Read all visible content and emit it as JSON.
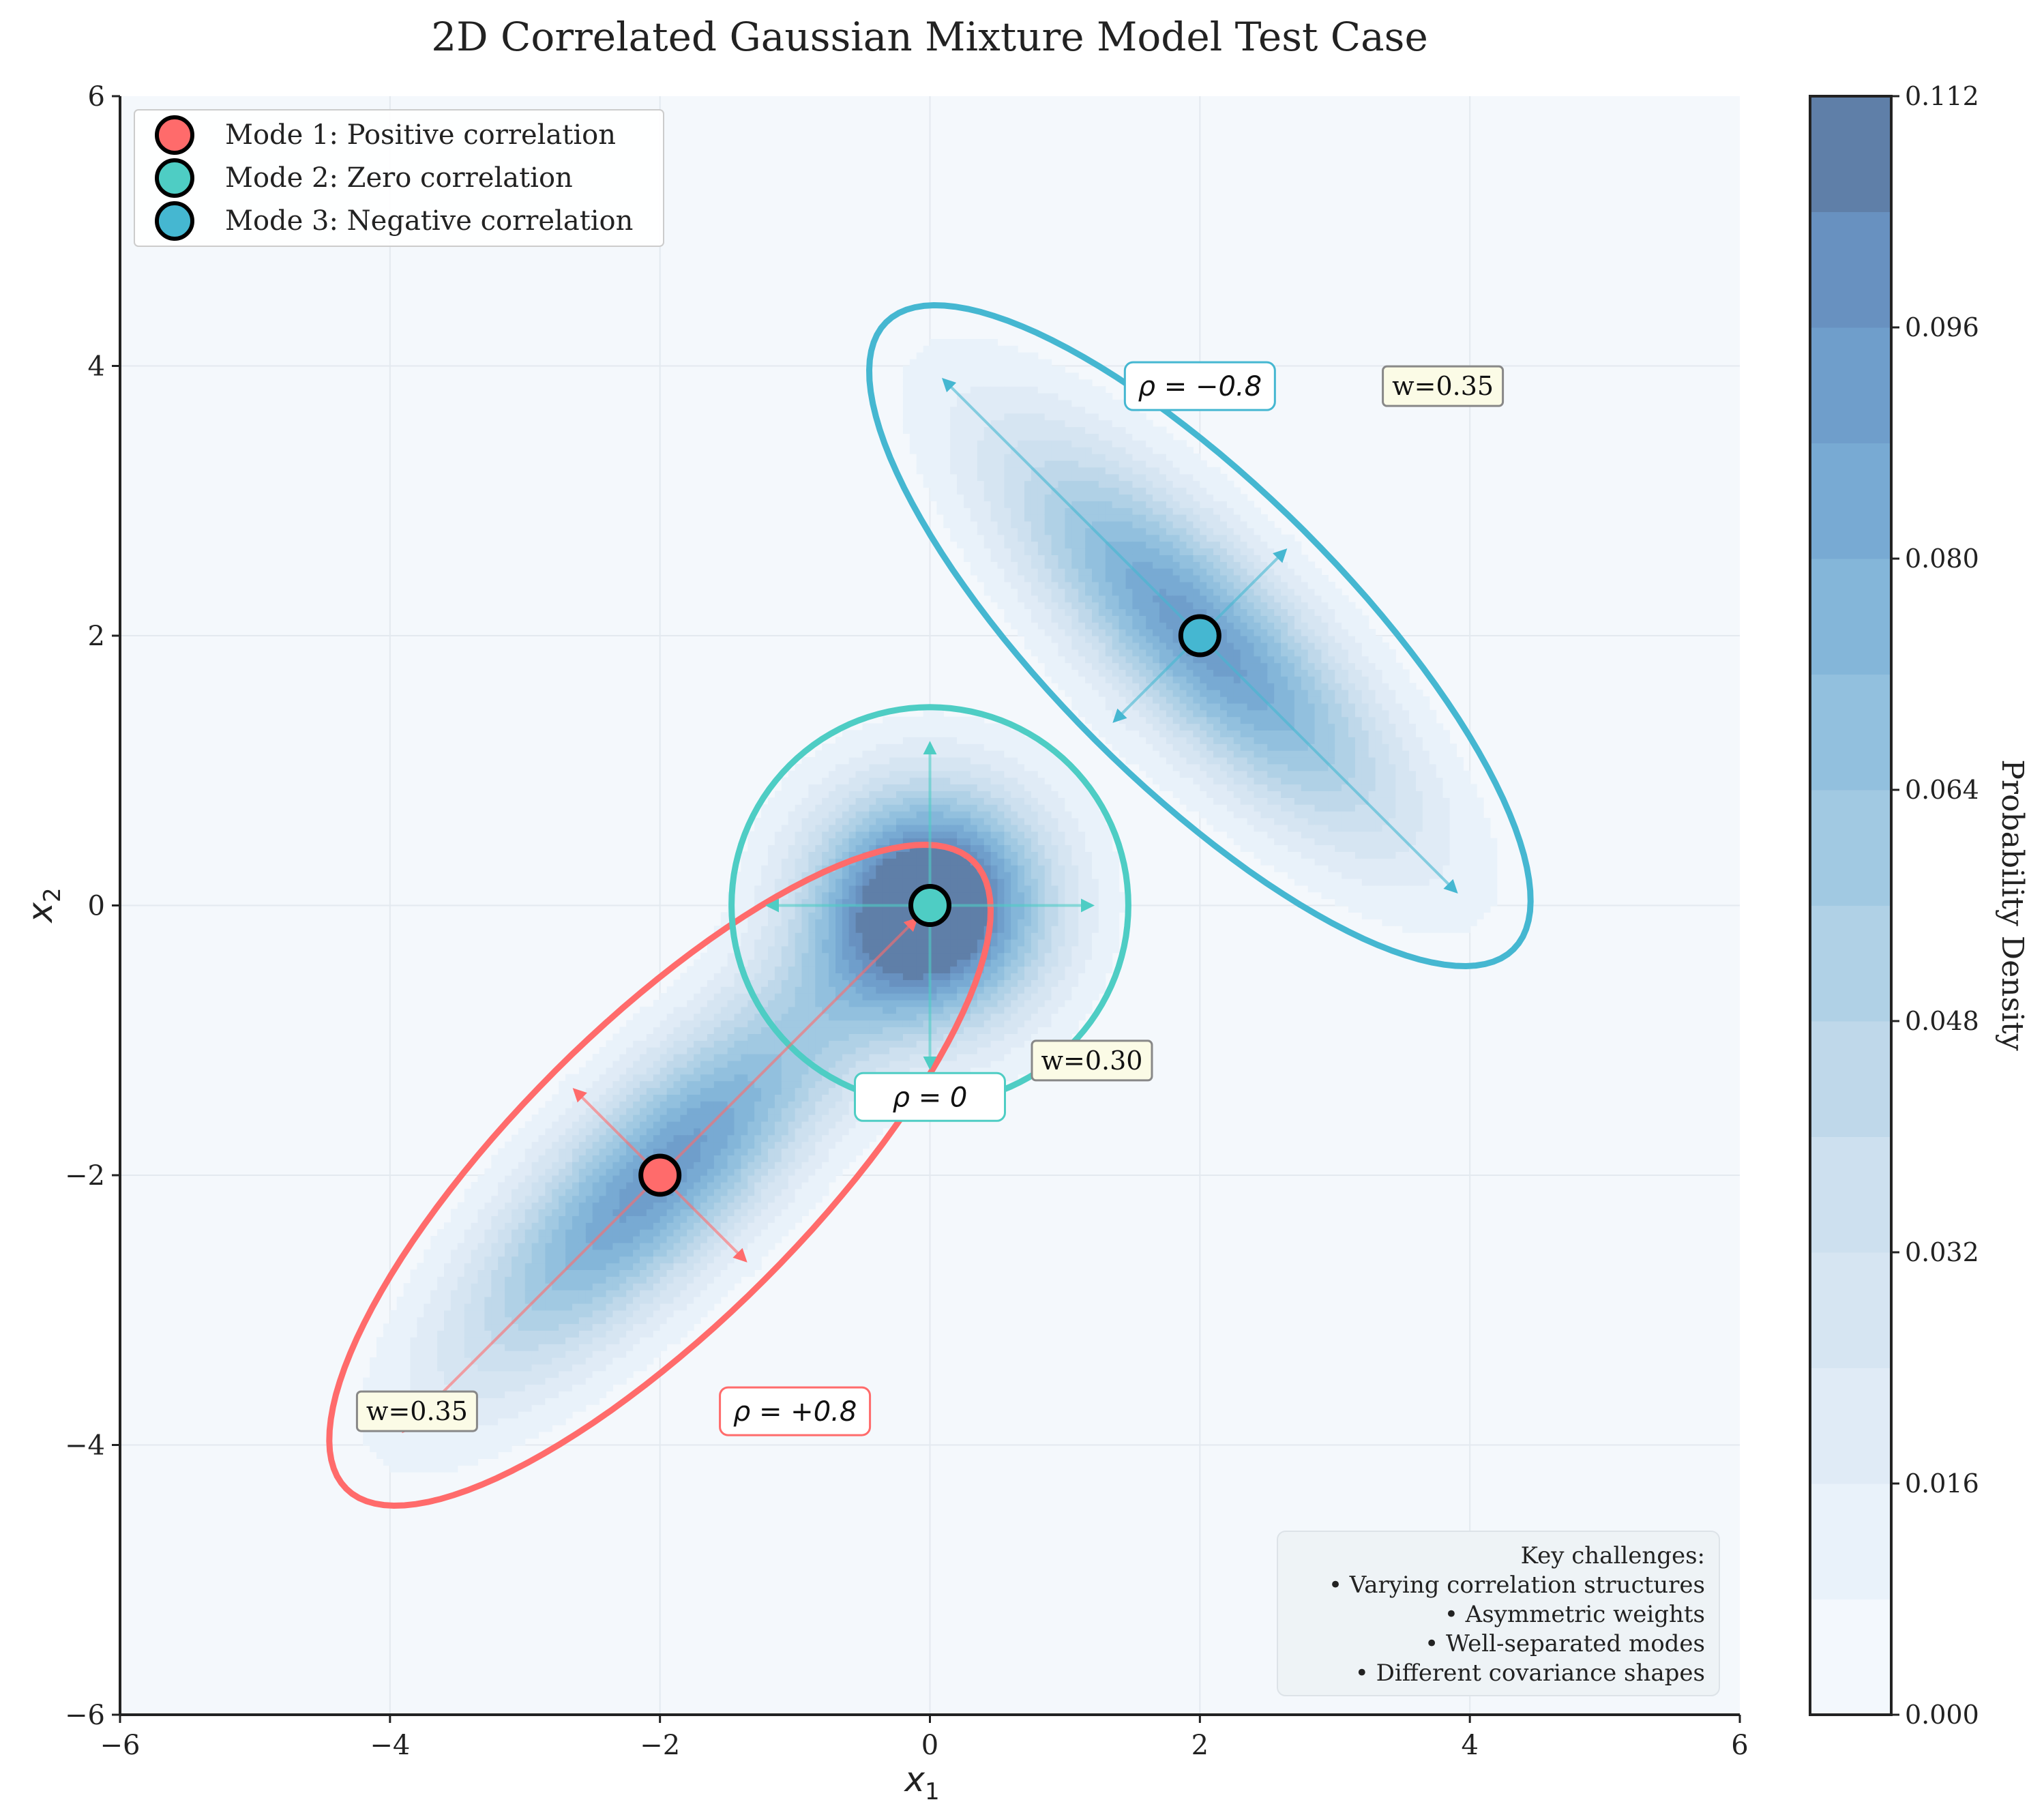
{
  "chart_data": {
    "type": "contour",
    "title": "2D Correlated Gaussian Mixture Model Test Case",
    "xlabel": "x",
    "xlabel_sub": "1",
    "ylabel": "x",
    "ylabel_sub": "2",
    "xlim": [
      -6,
      6
    ],
    "ylim": [
      -6,
      6
    ],
    "xticks": [
      -6,
      -4,
      -2,
      0,
      2,
      4,
      6
    ],
    "yticks": [
      -6,
      -4,
      -2,
      0,
      2,
      4,
      6
    ],
    "xtick_labels": [
      "−6",
      "−4",
      "−2",
      "0",
      "2",
      "4",
      "6"
    ],
    "ytick_labels": [
      "−6",
      "−4",
      "−2",
      "0",
      "2",
      "4",
      "6"
    ],
    "grid": true,
    "colorbar": {
      "label": "Probability Density",
      "min": 0.0,
      "max": 0.112,
      "ticks": [
        0.0,
        0.016,
        0.032,
        0.048,
        0.064,
        0.08,
        0.096,
        0.112
      ],
      "tick_labels": [
        "0.000",
        "0.016",
        "0.032",
        "0.048",
        "0.064",
        "0.080",
        "0.096",
        "0.112"
      ]
    },
    "modes": [
      {
        "name": "Mode 1: Positive correlation",
        "mean": [
          -2,
          -2
        ],
        "sigma": [
          1.0,
          1.0
        ],
        "rho": 0.8,
        "weight": 0.35,
        "color": "#ff6b6b",
        "rho_label": "ρ = +0.8",
        "weight_label": "w=0.35",
        "rho_label_pos": [
          -1.0,
          -3.75
        ],
        "weight_label_pos": [
          -3.8,
          -3.75
        ]
      },
      {
        "name": "Mode 2: Zero correlation",
        "mean": [
          0,
          0
        ],
        "sigma": [
          0.6,
          0.6
        ],
        "rho": 0.0,
        "weight": 0.3,
        "color": "#4ecdc4",
        "rho_label": "ρ = 0",
        "weight_label": "w=0.30",
        "rho_label_pos": [
          0.0,
          -1.42
        ],
        "weight_label_pos": [
          1.2,
          -1.15
        ]
      },
      {
        "name": "Mode 3: Negative correlation",
        "mean": [
          2,
          2
        ],
        "sigma": [
          1.0,
          1.0
        ],
        "rho": -0.8,
        "weight": 0.35,
        "color": "#45b7d1",
        "rho_label": "ρ = −0.8",
        "weight_label": "w=0.35",
        "rho_label_pos": [
          2.0,
          3.85
        ],
        "weight_label_pos": [
          3.8,
          3.85
        ]
      }
    ],
    "annotation": {
      "lines": [
        "Key challenges:",
        "• Varying correlation structures",
        "• Asymmetric weights",
        "• Well-separated modes",
        "• Different covariance shapes"
      ]
    }
  }
}
